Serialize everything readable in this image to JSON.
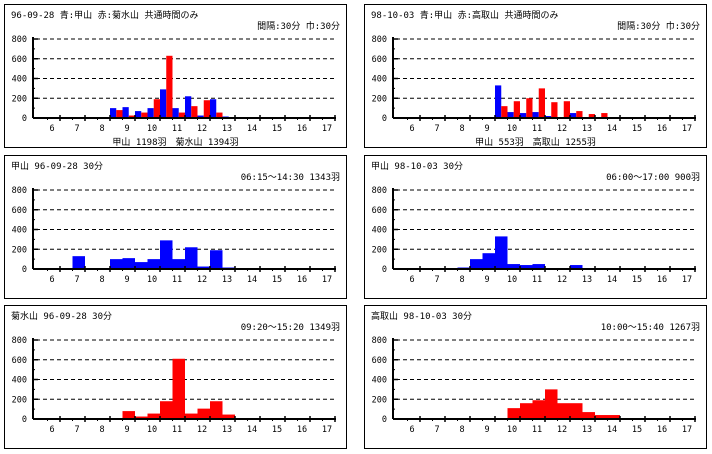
{
  "panels": [
    {
      "title": "96-09-28 青:甲山 赤:菊水山 共通時間のみ",
      "subtitle": "間隔:30分 巾:30分",
      "footer": "甲山 1198羽　菊水山 1394羽"
    },
    {
      "title": "98-10-03 青:甲山 赤:高取山 共通時間のみ",
      "subtitle": "間隔:30分 巾:30分",
      "footer": "甲山 553羽　高取山 1255羽"
    },
    {
      "title": "甲山 96-09-28 30分",
      "subtitle": "06:15～14:30 1343羽"
    },
    {
      "title": "甲山 98-10-03 30分",
      "subtitle": "06:00～17:00 900羽"
    },
    {
      "title": "菊水山 96-09-28 30分",
      "subtitle": "09:20～15:20 1349羽"
    },
    {
      "title": "高取山 98-10-03 30分",
      "subtitle": "10:00～15:40 1267羽"
    }
  ],
  "chart_data": [
    {
      "type": "bar",
      "grouped": true,
      "x_tick_labels": [
        "6",
        "7",
        "8",
        "9",
        "10",
        "11",
        "12",
        "13",
        "14",
        "15",
        "16",
        "17"
      ],
      "y_tick_labels": [
        "0",
        "200",
        "400",
        "600",
        "800"
      ],
      "ylim": [
        0,
        800
      ],
      "grid": "dashed horizontal",
      "x": [
        "08:30",
        "09:00",
        "09:30",
        "10:00",
        "10:30",
        "11:00",
        "11:30",
        "12:00",
        "12:30",
        "13:00"
      ],
      "series": [
        {
          "name": "甲山",
          "color": "#0000ff",
          "values": [
            100,
            110,
            70,
            100,
            290,
            100,
            220,
            25,
            190,
            15
          ]
        },
        {
          "name": "菊水山",
          "color": "#ff0000",
          "values": [
            80,
            25,
            55,
            190,
            630,
            55,
            120,
            180,
            55,
            0
          ]
        }
      ]
    },
    {
      "type": "bar",
      "grouped": true,
      "x_tick_labels": [
        "6",
        "7",
        "8",
        "9",
        "10",
        "11",
        "12",
        "13",
        "14",
        "15",
        "16",
        "17"
      ],
      "y_tick_labels": [
        "0",
        "200",
        "400",
        "600",
        "800"
      ],
      "ylim": [
        0,
        800
      ],
      "grid": "dashed horizontal",
      "x": [
        "09:30",
        "10:00",
        "10:30",
        "11:00",
        "11:30",
        "12:00",
        "12:30",
        "13:00",
        "13:30"
      ],
      "series": [
        {
          "name": "甲山",
          "color": "#0000ff",
          "values": [
            330,
            60,
            50,
            60,
            20,
            0,
            50,
            0,
            0
          ]
        },
        {
          "name": "高取山",
          "color": "#ff0000",
          "values": [
            120,
            170,
            200,
            300,
            160,
            170,
            70,
            40,
            50
          ]
        }
      ]
    },
    {
      "type": "bar",
      "grouped": false,
      "x_tick_labels": [
        "6",
        "7",
        "8",
        "9",
        "10",
        "11",
        "12",
        "13",
        "14",
        "15",
        "16",
        "17"
      ],
      "y_tick_labels": [
        "0",
        "200",
        "400",
        "600",
        "800"
      ],
      "ylim": [
        0,
        800
      ],
      "grid": "dashed horizontal",
      "x": [
        "07:00",
        "07:30",
        "08:00",
        "08:30",
        "09:00",
        "09:30",
        "10:00",
        "10:30",
        "11:00",
        "11:30",
        "12:00",
        "12:30",
        "13:00"
      ],
      "series": [
        {
          "color": "#0000ff",
          "values": [
            130,
            0,
            0,
            100,
            110,
            70,
            100,
            290,
            100,
            220,
            25,
            190,
            15
          ]
        }
      ]
    },
    {
      "type": "bar",
      "grouped": false,
      "x_tick_labels": [
        "6",
        "7",
        "8",
        "9",
        "10",
        "11",
        "12",
        "13",
        "14",
        "15",
        "16",
        "17"
      ],
      "y_tick_labels": [
        "0",
        "200",
        "400",
        "600",
        "800"
      ],
      "ylim": [
        0,
        800
      ],
      "grid": "dashed horizontal",
      "x": [
        "08:00",
        "08:30",
        "09:00",
        "09:30",
        "10:00",
        "10:30",
        "11:00",
        "11:30",
        "12:00",
        "12:30"
      ],
      "series": [
        {
          "color": "#0000ff",
          "values": [
            15,
            100,
            160,
            330,
            50,
            40,
            50,
            0,
            0,
            40
          ]
        }
      ]
    },
    {
      "type": "bar",
      "grouped": false,
      "x_tick_labels": [
        "6",
        "7",
        "8",
        "9",
        "10",
        "11",
        "12",
        "13",
        "14",
        "15",
        "16",
        "17"
      ],
      "y_tick_labels": [
        "0",
        "200",
        "400",
        "600",
        "800"
      ],
      "ylim": [
        0,
        800
      ],
      "grid": "dashed horizontal",
      "x": [
        "09:00",
        "09:30",
        "10:00",
        "10:30",
        "11:00",
        "11:30",
        "12:00",
        "12:30",
        "13:00"
      ],
      "series": [
        {
          "color": "#ff0000",
          "values": [
            80,
            25,
            55,
            180,
            610,
            55,
            105,
            180,
            45
          ]
        }
      ]
    },
    {
      "type": "bar",
      "grouped": false,
      "x_tick_labels": [
        "6",
        "7",
        "8",
        "9",
        "10",
        "11",
        "12",
        "13",
        "14",
        "15",
        "16",
        "17"
      ],
      "y_tick_labels": [
        "0",
        "200",
        "400",
        "600",
        "800"
      ],
      "ylim": [
        0,
        800
      ],
      "grid": "dashed horizontal",
      "x": [
        "10:00",
        "10:30",
        "11:00",
        "11:30",
        "12:00",
        "12:30",
        "13:00",
        "13:30",
        "14:00"
      ],
      "series": [
        {
          "color": "#ff0000",
          "values": [
            110,
            160,
            190,
            300,
            160,
            160,
            70,
            40,
            40
          ]
        }
      ]
    }
  ]
}
